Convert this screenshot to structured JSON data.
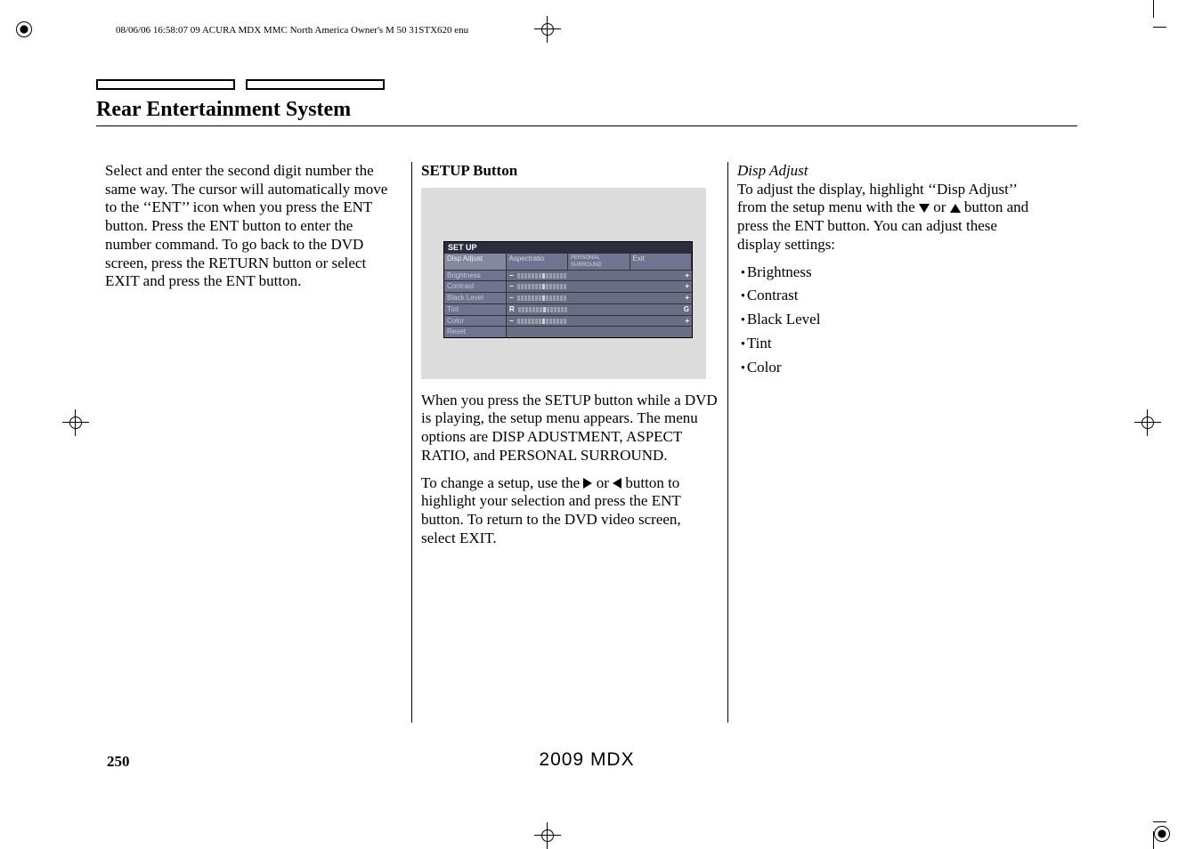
{
  "header_meta": "08/06/06 16:58:07   09 ACURA MDX MMC North America Owner's M 50 31STX620 enu",
  "title": "Rear Entertainment System",
  "col1": {
    "p1": "Select and enter the second digit number the same way. The cursor will automatically move to the ‘‘ENT’’ icon when you press the ENT button. Press the ENT button to enter the number command. To go back to the DVD screen, press the RETURN button or select EXIT and press the ENT button."
  },
  "col2": {
    "heading": "SETUP Button",
    "setup": {
      "title": "SET UP",
      "tabs": [
        "Disp Adjust",
        "Aspectratio",
        "PERSONAL SURROUND",
        "Exit"
      ],
      "rows": [
        {
          "label": "Brightness",
          "left": "−",
          "right": "+",
          "mid": 7,
          "total": 14
        },
        {
          "label": "Contrast",
          "left": "−",
          "right": "+",
          "mid": 7,
          "total": 14
        },
        {
          "label": "Black Level",
          "left": "−",
          "right": "+",
          "mid": 7,
          "total": 14
        },
        {
          "label": "Tint",
          "left": "R",
          "right": "G",
          "mid": 7,
          "total": 14
        },
        {
          "label": "Color",
          "left": "−",
          "right": "+",
          "mid": 7,
          "total": 14
        },
        {
          "label": "Reset",
          "left": "",
          "right": "",
          "mid": 0,
          "total": 0
        }
      ]
    },
    "p1": "When you press the SETUP button while a DVD is playing, the setup menu appears. The menu options are DISP ADUSTMENT, ASPECT RATIO, and PERSONAL SURROUND.",
    "p2a": "To change a setup, use the ",
    "p2b": " or ",
    "p2c": " button to highlight your selection and press the ENT button. To return to the DVD video screen, select EXIT."
  },
  "col3": {
    "heading": "Disp Adjust",
    "p1a": "To adjust the display, highlight ‘‘Disp Adjust’’ from the setup menu with the ",
    "p1b": " or ",
    "p1c": " button and press the ENT button. You can adjust these display settings:",
    "bullets": [
      "Brightness",
      "Contrast",
      "Black Level",
      "Tint",
      "Color"
    ]
  },
  "page_number": "250",
  "footer_model": "2009  MDX"
}
